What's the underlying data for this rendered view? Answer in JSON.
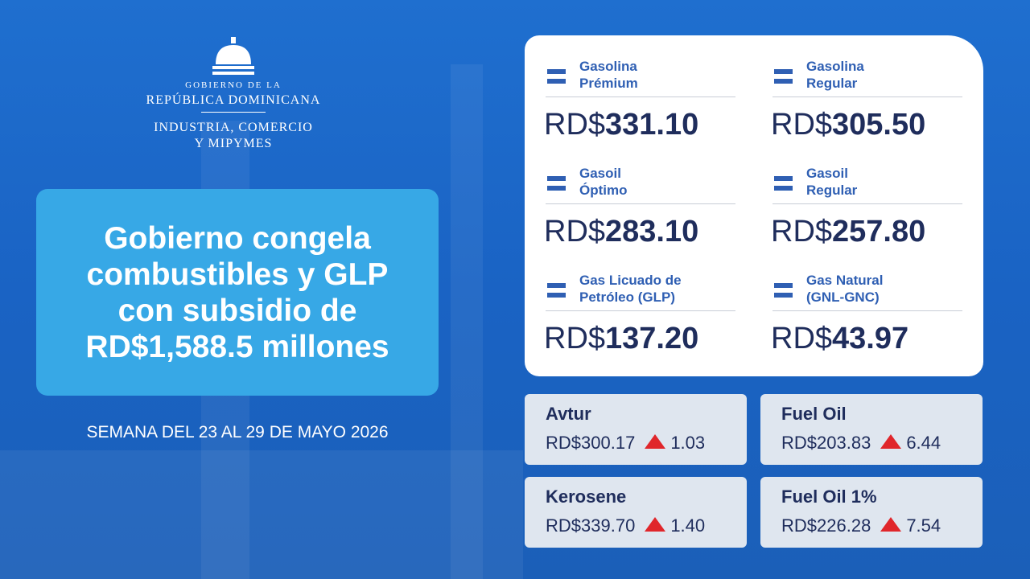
{
  "header": {
    "lines": [
      "GOBIERNO DE LA",
      "REPÚBLICA DOMINICANA",
      "INDUSTRIA, COMERCIO",
      "Y MIPYMES"
    ]
  },
  "headline": [
    "Gobierno congela",
    "combustibles y GLP",
    "con subsidio de",
    "RD$1,588.5 millones"
  ],
  "week": "SEMANA DEL 23 AL 29 DE MAYO 2026",
  "fuels": [
    {
      "name": [
        "Gasolina",
        "Prémium"
      ],
      "currency": "RD$",
      "amount": "331.10"
    },
    {
      "name": [
        "Gasolina",
        "Regular"
      ],
      "currency": "RD$",
      "amount": "305.50"
    },
    {
      "name": [
        "Gasoil",
        "Óptimo"
      ],
      "currency": "RD$",
      "amount": "283.10"
    },
    {
      "name": [
        "Gasoil",
        "Regular"
      ],
      "currency": "RD$",
      "amount": "257.80"
    },
    {
      "name": [
        "Gas Licuado de",
        "Petróleo (GLP)"
      ],
      "currency": "RD$",
      "amount": "137.20"
    },
    {
      "name": [
        "Gas Natural",
        "(GNL-GNC)"
      ],
      "currency": "RD$",
      "amount": "43.97"
    }
  ],
  "others": [
    {
      "name": "Avtur",
      "price": "RD$300.17",
      "change": "1.03"
    },
    {
      "name": "Fuel Oil",
      "price": "RD$203.83",
      "change": "6.44"
    },
    {
      "name": "Kerosene",
      "price": "RD$339.70",
      "change": "1.40"
    },
    {
      "name": "Fuel Oil 1%",
      "price": "RD$226.28",
      "change": "7.54"
    }
  ]
}
